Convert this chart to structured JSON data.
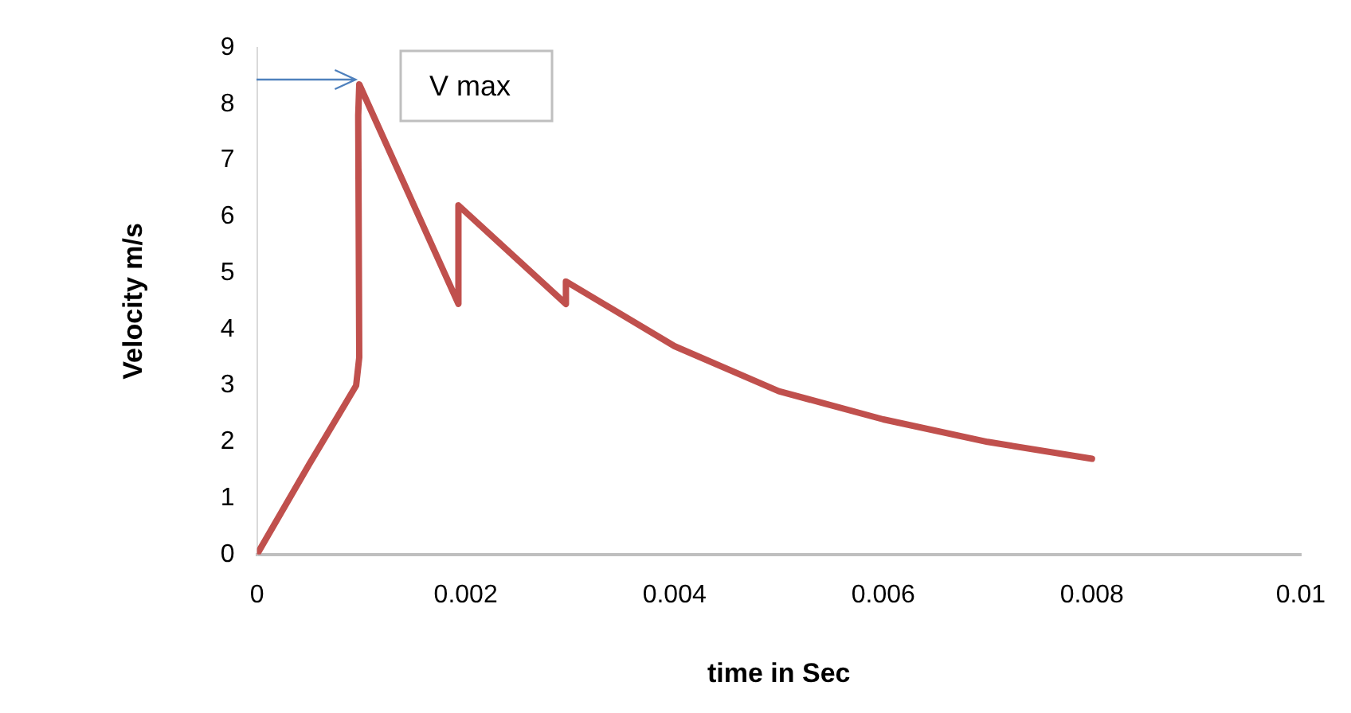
{
  "chart_data": {
    "type": "line",
    "xlabel": "time in Sec",
    "ylabel": "Velocity m/s",
    "series": [
      {
        "color": "#c0504d",
        "x": [
          0,
          0.0005,
          0.00095,
          0.00098,
          0.00097,
          0.00098,
          0.00193,
          0.00193,
          0.00296,
          0.00296,
          0.004,
          0.005,
          0.006,
          0.007,
          0.008
        ],
        "values": [
          0,
          1.6,
          3.0,
          3.5,
          7.8,
          8.35,
          4.45,
          6.2,
          4.45,
          4.85,
          3.7,
          2.9,
          2.4,
          2.0,
          1.7
        ]
      }
    ],
    "xlim": [
      0,
      0.01
    ],
    "xticks": [
      0,
      0.002,
      0.004,
      0.006,
      0.008,
      0.01
    ],
    "ylim": [
      0,
      9
    ],
    "yticks": [
      0,
      1,
      2,
      3,
      4,
      5,
      6,
      7,
      8,
      9
    ],
    "grid": false,
    "legend": false,
    "marker": "none",
    "line_style": "solid",
    "annotations": [
      {
        "text": "V max",
        "x": 0.00098,
        "y": 8.35
      }
    ]
  }
}
